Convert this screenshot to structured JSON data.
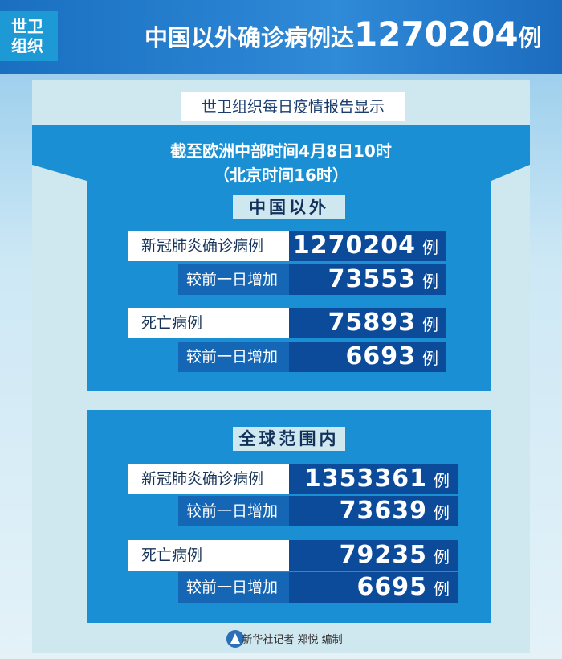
{
  "header": {
    "badge": [
      "世卫",
      "组织"
    ],
    "title_prefix": "中国以外确诊病例达",
    "title_number": 1270204,
    "title_suffix": "例"
  },
  "source": "世卫组织每日疫情报告显示",
  "time": [
    "截至欧洲中部时间4月8日10时",
    "（北京时间16时）"
  ],
  "sections": [
    {
      "heading": "中国以外",
      "rows": [
        {
          "label": "新冠肺炎确诊病例",
          "value": 1270204,
          "unit": "例"
        },
        {
          "label": "较前一日增加",
          "value": 73553,
          "unit": "例"
        },
        {
          "label": "死亡病例",
          "value": 75893,
          "unit": "例"
        },
        {
          "label": "较前一日增加",
          "value": 6693,
          "unit": "例"
        }
      ]
    },
    {
      "heading": "全球范围内",
      "rows": [
        {
          "label": "新冠肺炎确诊病例",
          "value": 1353361,
          "unit": "例"
        },
        {
          "label": "较前一日增加",
          "value": 73639,
          "unit": "例"
        },
        {
          "label": "死亡病例",
          "value": 79235,
          "unit": "例"
        },
        {
          "label": "较前一日增加",
          "value": 6695,
          "unit": "例"
        }
      ]
    }
  ],
  "footer": "新华社记者 郑悦 编制"
}
